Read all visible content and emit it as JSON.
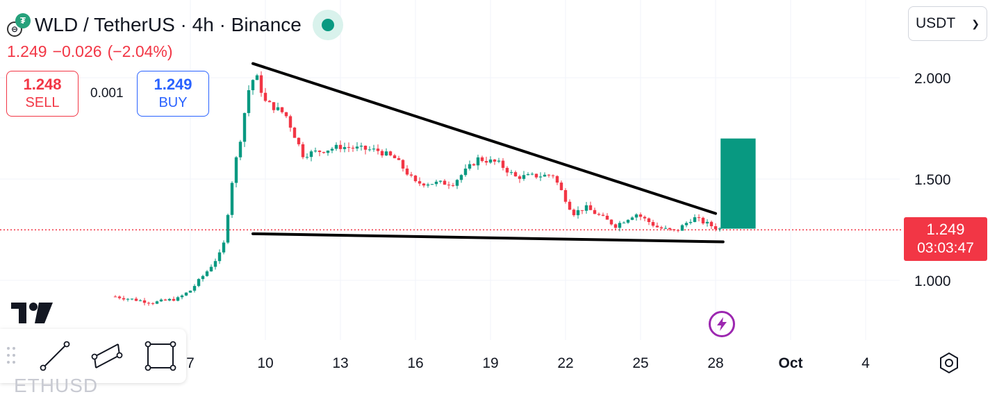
{
  "header": {
    "title": "WLD / TetherUS · 4h · Binance",
    "price": "1.249",
    "change": "−0.026",
    "change_pct": "(−2.04%)"
  },
  "trade": {
    "sell_price": "1.248",
    "sell_label": "SELL",
    "spread": "0.001",
    "buy_price": "1.249",
    "buy_label": "BUY"
  },
  "currency": {
    "selected": "USDT"
  },
  "last_price": {
    "value": "1.249",
    "countdown": "03:03:47"
  },
  "bottom_ticker": "ETHUSD",
  "colors": {
    "up": "#089981",
    "down": "#f23645",
    "drawing": "#000000",
    "grid": "#f0f3fa"
  },
  "icons": [
    "trendline-icon",
    "parallel-channel-icon",
    "rectangle-icon",
    "lightning-icon",
    "settings-icon",
    "grip-icon",
    "tradingview-logo-icon"
  ],
  "chart_data": {
    "type": "candlestick",
    "title": "WLD / TetherUS · 4h · Binance",
    "y_ticks": [
      "2.000",
      "1.500",
      "1.000"
    ],
    "y_tick_values": [
      2.0,
      1.5,
      1.0
    ],
    "x_ticks": [
      "7",
      "10",
      "13",
      "16",
      "19",
      "22",
      "25",
      "28",
      "Oct",
      "4"
    ],
    "x_tick_days": [
      7,
      10,
      13,
      16,
      19,
      22,
      25,
      28,
      31,
      34
    ],
    "last_price": 1.249,
    "anchors": [
      {
        "day": 4.0,
        "price": 0.92
      },
      {
        "day": 5.5,
        "price": 0.89
      },
      {
        "day": 6.5,
        "price": 0.91
      },
      {
        "day": 7.0,
        "price": 0.95
      },
      {
        "day": 7.7,
        "price": 1.05
      },
      {
        "day": 8.3,
        "price": 1.15
      },
      {
        "day": 8.7,
        "price": 1.52
      },
      {
        "day": 9.0,
        "price": 1.7
      },
      {
        "day": 9.3,
        "price": 1.93
      },
      {
        "day": 9.6,
        "price": 2.02
      },
      {
        "day": 10.0,
        "price": 1.88
      },
      {
        "day": 10.8,
        "price": 1.82
      },
      {
        "day": 11.5,
        "price": 1.62
      },
      {
        "day": 13.0,
        "price": 1.66
      },
      {
        "day": 14.5,
        "price": 1.64
      },
      {
        "day": 15.2,
        "price": 1.6
      },
      {
        "day": 16.0,
        "price": 1.48
      },
      {
        "day": 17.5,
        "price": 1.48
      },
      {
        "day": 18.5,
        "price": 1.6
      },
      {
        "day": 19.3,
        "price": 1.58
      },
      {
        "day": 20.0,
        "price": 1.51
      },
      {
        "day": 21.5,
        "price": 1.52
      },
      {
        "day": 22.3,
        "price": 1.33
      },
      {
        "day": 22.8,
        "price": 1.36
      },
      {
        "day": 24.0,
        "price": 1.27
      },
      {
        "day": 24.8,
        "price": 1.33
      },
      {
        "day": 25.7,
        "price": 1.26
      },
      {
        "day": 26.4,
        "price": 1.24
      },
      {
        "day": 27.1,
        "price": 1.31
      },
      {
        "day": 28.0,
        "price": 1.26
      },
      {
        "day": 28.3,
        "price": 1.249
      }
    ],
    "drawings": [
      {
        "type": "trendline",
        "from": {
          "day": 9.5,
          "price": 2.07
        },
        "to": {
          "day": 28.0,
          "price": 1.33
        }
      },
      {
        "type": "trendline",
        "from": {
          "day": 9.5,
          "price": 1.23
        },
        "to": {
          "day": 28.3,
          "price": 1.19
        }
      },
      {
        "type": "rectangle",
        "from": {
          "day": 28.2,
          "price": 1.255
        },
        "to": {
          "day": 29.6,
          "price": 1.7
        }
      }
    ]
  }
}
